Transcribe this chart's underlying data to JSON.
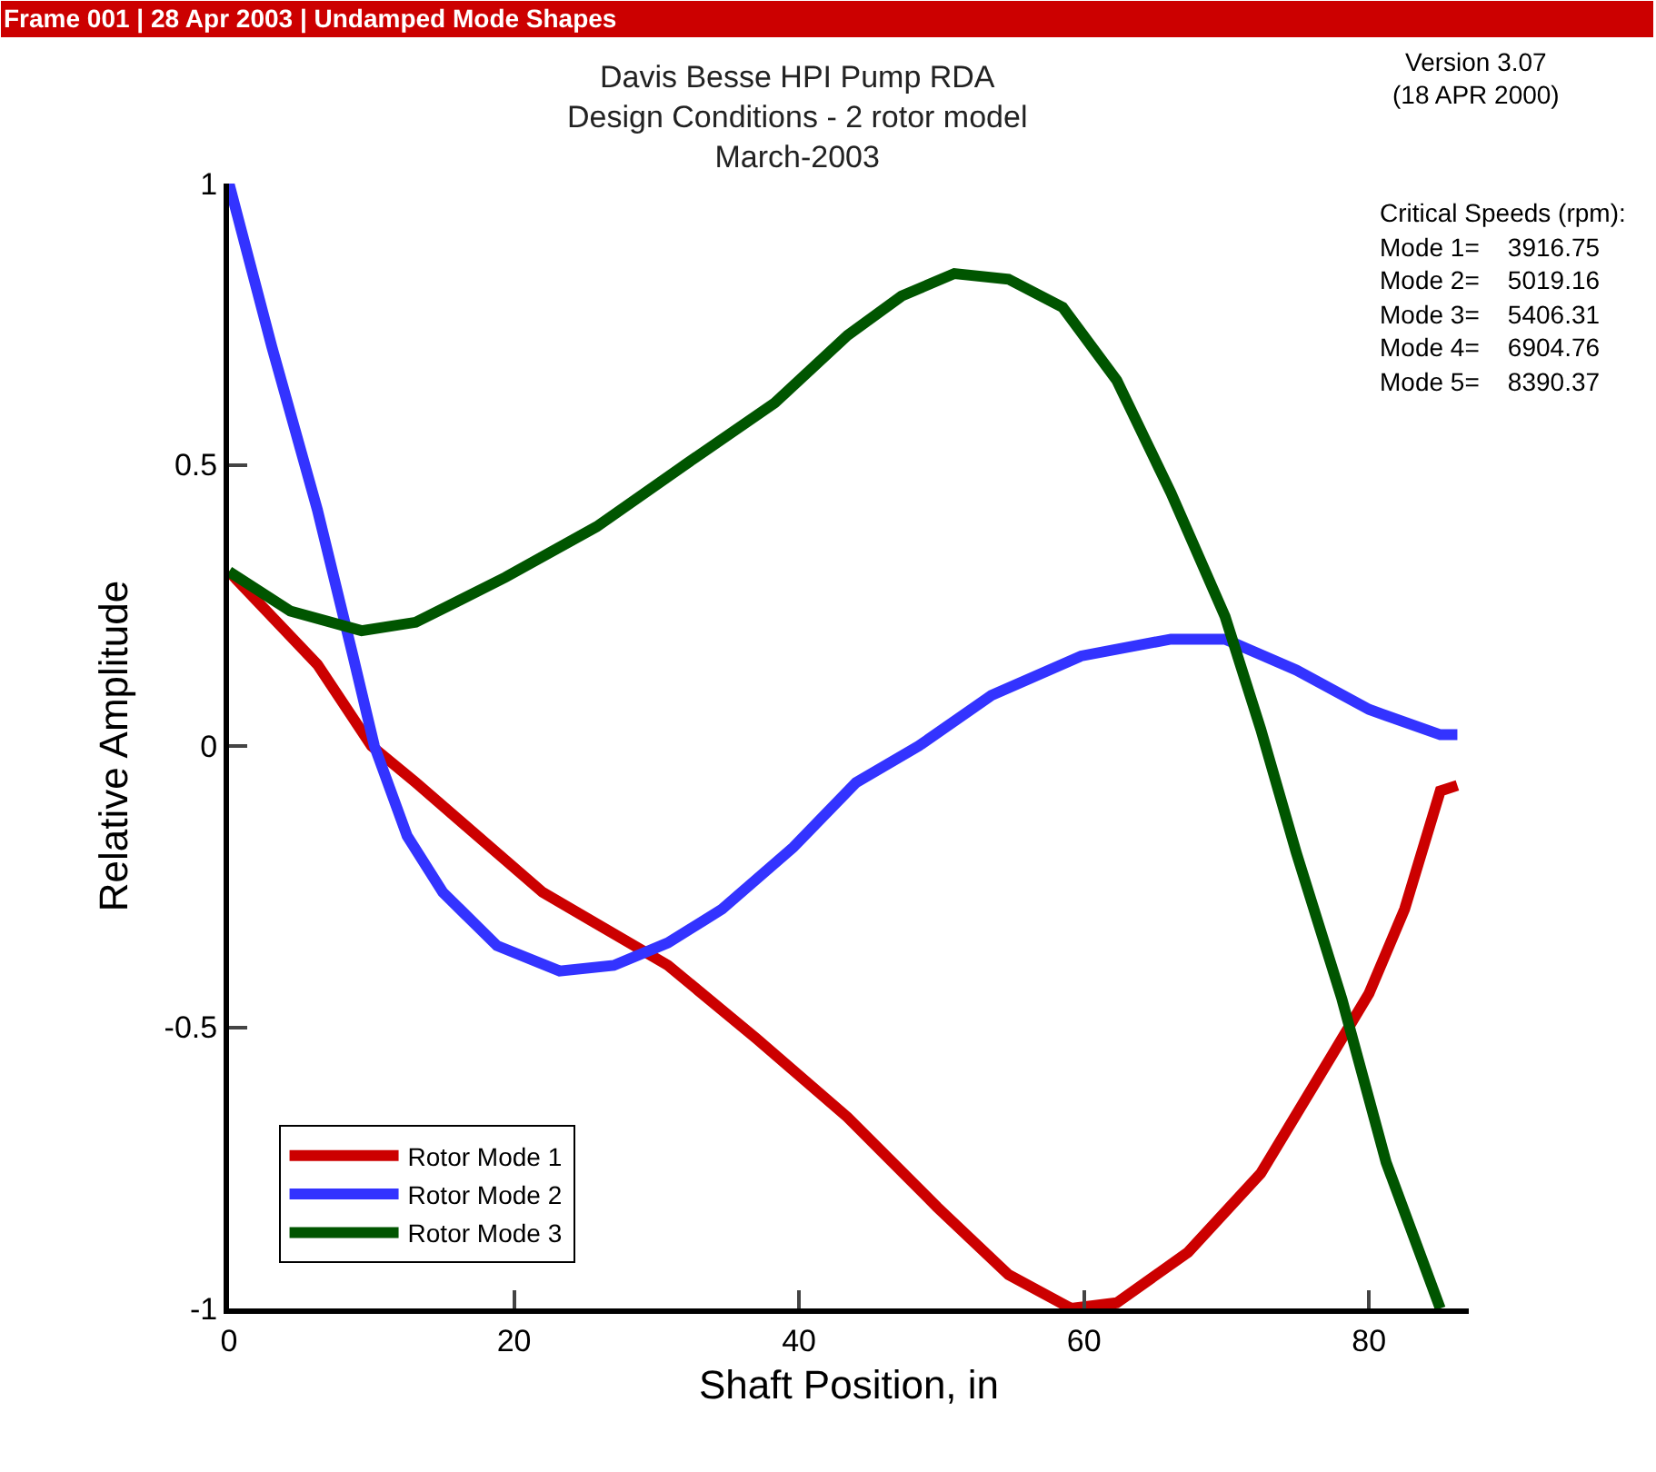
{
  "chart_data": {
    "type": "line",
    "title": "Davis Besse HPI Pump RDA",
    "subtitle": "Design Conditions - 2 rotor model\nMarch-2003",
    "xlabel": "Shaft Position, in",
    "ylabel": "Relative Amplitude",
    "xlim": [
      0,
      87
    ],
    "xticks": [
      0,
      20,
      40,
      60,
      80
    ],
    "ylim": [
      -1,
      1
    ],
    "yticks": [
      -1,
      -0.5,
      0,
      0.5,
      1
    ],
    "legend": "bottom left",
    "marker": "none",
    "line_style": "solid",
    "series": [
      {
        "name": "Rotor Mode 1",
        "color": "#cc0000",
        "x": [
          0,
          6.2,
          10,
          13.1,
          22,
          30.8,
          37,
          43.4,
          49.7,
          54.7,
          59.1,
          62.3,
          67.3,
          72.4,
          77.4,
          80,
          82.5,
          85,
          86.2
        ],
        "values": [
          0.31,
          0.145,
          0,
          -0.065,
          -0.26,
          -0.39,
          -0.52,
          -0.66,
          -0.82,
          -0.94,
          -1.0,
          -0.99,
          -0.9,
          -0.76,
          -0.55,
          -0.44,
          -0.29,
          -0.08,
          -0.07
        ]
      },
      {
        "name": "Rotor Mode 2",
        "color": "#3333ff",
        "x": [
          0,
          3,
          6.2,
          8.7,
          10.2,
          12.5,
          15,
          18.8,
          23.2,
          27,
          30.8,
          34.6,
          39.6,
          44,
          48.4,
          53.5,
          59.8,
          66.1,
          69.9,
          74.9,
          80,
          85,
          86.2
        ],
        "values": [
          1.0,
          0.71,
          0.42,
          0.16,
          0,
          -0.16,
          -0.26,
          -0.355,
          -0.4,
          -0.39,
          -0.35,
          -0.29,
          -0.18,
          -0.065,
          0,
          0.09,
          0.16,
          0.19,
          0.19,
          0.135,
          0.065,
          0.02,
          0.02
        ]
      },
      {
        "name": "Rotor Mode 3",
        "color": "#005500",
        "x": [
          0,
          4.3,
          9.3,
          13.1,
          19.4,
          25.8,
          32,
          38.3,
          43.4,
          47.2,
          50.9,
          54.7,
          58.5,
          62.3,
          66.1,
          69.9,
          72.4,
          74.9,
          78.1,
          81.2,
          85
        ],
        "values": [
          0.31,
          0.24,
          0.205,
          0.22,
          0.3,
          0.39,
          0.5,
          0.61,
          0.73,
          0.8,
          0.84,
          0.83,
          0.78,
          0.65,
          0.45,
          0.23,
          0.03,
          -0.19,
          -0.45,
          -0.74,
          -1.0
        ]
      }
    ],
    "annotations": [
      "Frame 001 | 28 Apr 2003 | Undamped Mode Shapes",
      "Version 3.07",
      "(18 APR 2000)",
      "Critical Speeds (rpm):",
      "Mode 1=    3916.75",
      "Mode 2=    5019.16",
      "Mode 3=    5406.31",
      "Mode 4=    6904.76",
      "Mode 5=    8390.37"
    ]
  }
}
